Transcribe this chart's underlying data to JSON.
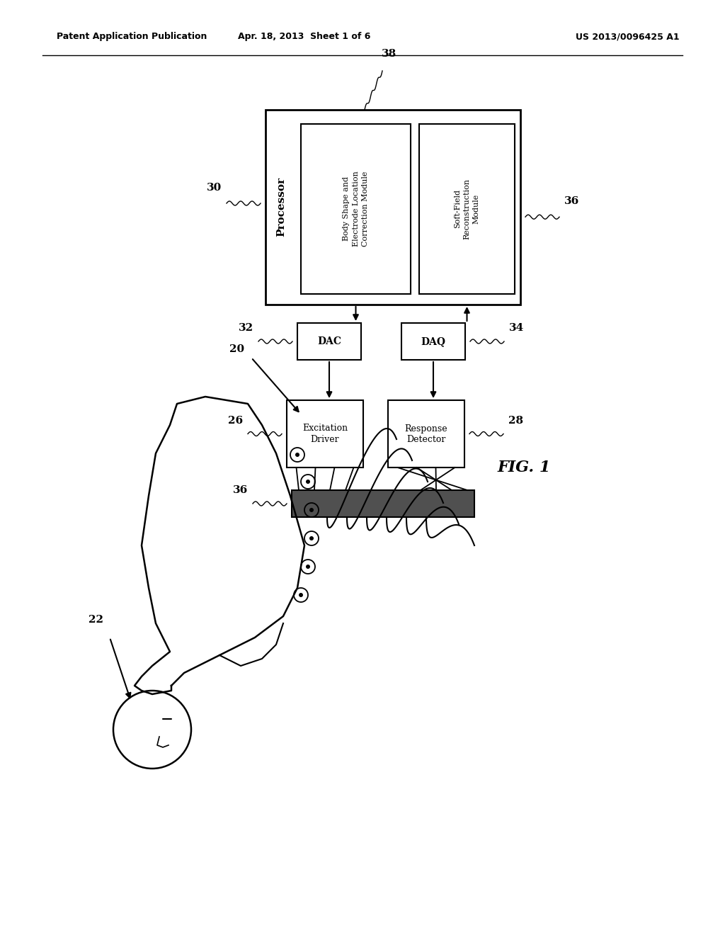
{
  "bg_color": "#ffffff",
  "header_left": "Patent Application Publication",
  "header_mid": "Apr. 18, 2013  Sheet 1 of 6",
  "header_right": "US 2013/0096425 A1",
  "fig_label": "FIG. 1",
  "processor_label": "Processor",
  "processor_num": "30",
  "module1_text": "Body Shape and\nElectrode Location\nCorrection Module",
  "module2_text": "Soft-Field\nReconstruction\nModule",
  "module2_num": "36",
  "dac_label": "DAC",
  "dac_num": "32",
  "daq_label": "DAQ",
  "daq_num": "34",
  "excitation_label": "Excitation\nDriver",
  "excitation_num": "26",
  "response_label": "Response\nDetector",
  "response_num": "28",
  "connector_num": "36",
  "system_num": "20",
  "body_num": "22",
  "proc_box_num": "38"
}
